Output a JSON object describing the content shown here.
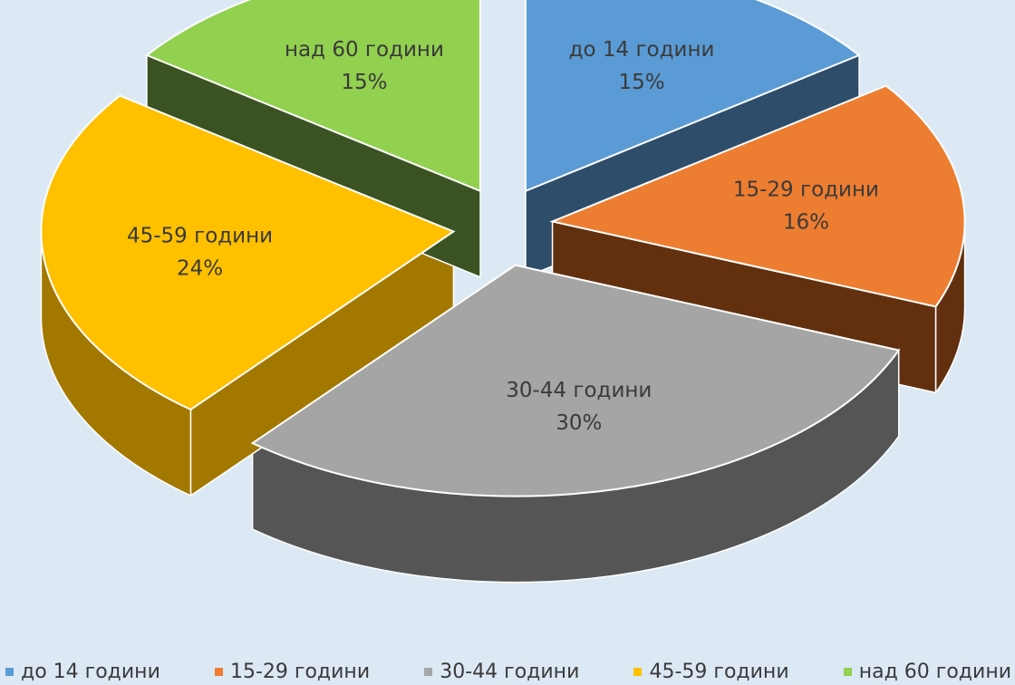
{
  "chart_data": {
    "type": "pie",
    "title": "",
    "legend_position": "bottom",
    "slices": [
      {
        "name": "до 14 години",
        "value": 15,
        "label": "15%",
        "color": "#5b9bd5",
        "side_color": "#2e4d6b"
      },
      {
        "name": "15-29 години",
        "value": 16,
        "label": "16%",
        "color": "#ed7d31",
        "side_color": "#62300f"
      },
      {
        "name": "30-44 години",
        "value": 30,
        "label": "30%",
        "color": "#a5a5a5",
        "side_color": "#555555"
      },
      {
        "name": "45-59 години",
        "value": 24,
        "label": "24%",
        "color": "#ffc000",
        "side_color": "#a37800"
      },
      {
        "name": "над 60 години",
        "value": 15,
        "label": "15%",
        "color": "#92d050",
        "side_color": "#3b5323"
      }
    ]
  }
}
